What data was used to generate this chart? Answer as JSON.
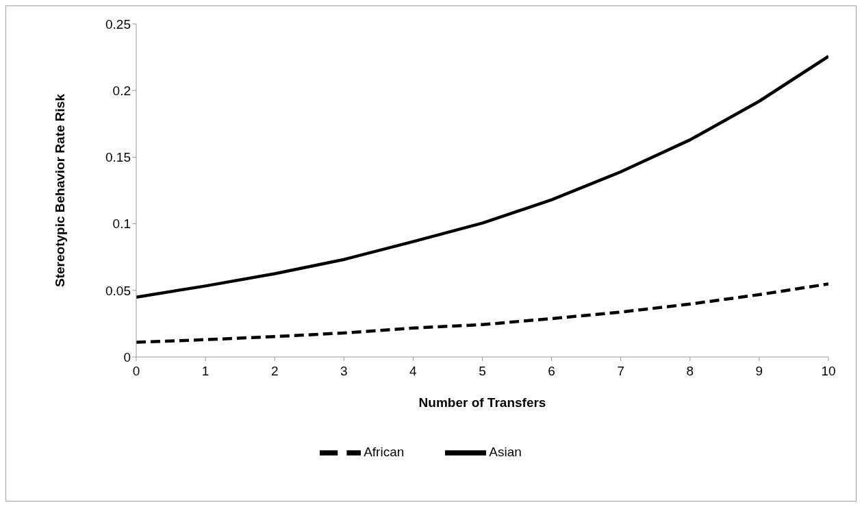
{
  "chart_data": {
    "type": "line",
    "xlabel": "Number of Transfers",
    "ylabel": "Stereotypic Behavior Rate Risk",
    "x": [
      0,
      1,
      2,
      3,
      4,
      5,
      6,
      7,
      8,
      9,
      10
    ],
    "series": [
      {
        "name": "African",
        "color": "#000000",
        "line_style": "dashed",
        "values": [
          0.011,
          0.013,
          0.0153,
          0.018,
          0.0217,
          0.0243,
          0.0288,
          0.0337,
          0.0397,
          0.0468,
          0.0548
        ]
      },
      {
        "name": "Asian",
        "color": "#000000",
        "line_style": "solid",
        "values": [
          0.0449,
          0.0533,
          0.0625,
          0.0732,
          0.0866,
          0.1005,
          0.118,
          0.139,
          0.163,
          0.192,
          0.2257
        ]
      }
    ],
    "xlim": [
      0,
      10
    ],
    "xticks": [
      0,
      1,
      2,
      3,
      4,
      5,
      6,
      7,
      8,
      9,
      10
    ],
    "ylim": [
      0,
      0.25
    ],
    "yticks": [
      0,
      0.05,
      0.1,
      0.15,
      0.2,
      0.25
    ],
    "legend": "bottom",
    "marker": "none"
  }
}
